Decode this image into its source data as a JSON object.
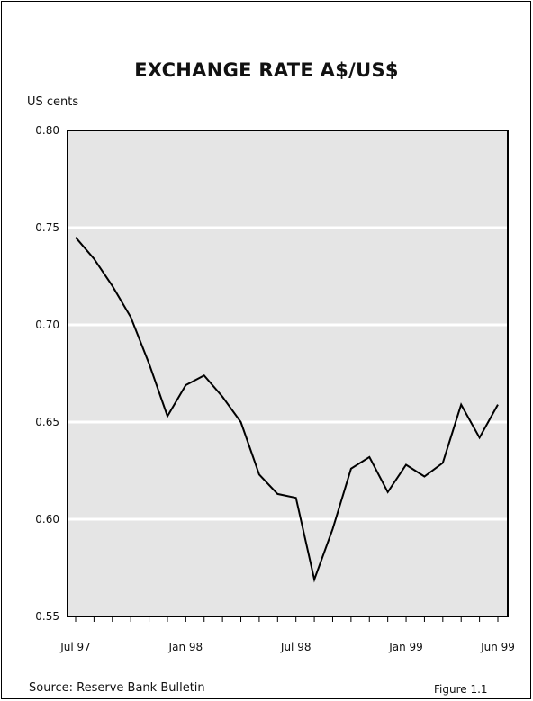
{
  "chart_data": {
    "type": "line",
    "title": "EXCHANGE RATE A$/US$",
    "ylabel": "US cents",
    "xlabel": "",
    "ylim": [
      0.55,
      0.8
    ],
    "yticks": [
      "0.80",
      "0.75",
      "0.70",
      "0.65",
      "0.60",
      "0.55"
    ],
    "xticks": [
      "Jul 97",
      "Jan 98",
      "Jul 98",
      "Jan 99",
      "Jun 99"
    ],
    "grid": true,
    "series": [
      {
        "x": [
          "Jul 97",
          "Aug 97",
          "Sep 97",
          "Oct 97",
          "Nov 97",
          "Dec 97",
          "Jan 98",
          "Feb 98",
          "Mar 98",
          "Apr 98",
          "May 98",
          "Jun 98",
          "Jul 98",
          "Aug 98",
          "Sep 98",
          "Oct 98",
          "Nov 98",
          "Dec 98",
          "Jan 99",
          "Feb 99",
          "Mar 99",
          "Apr 99",
          "May 99",
          "Jun 99"
        ],
        "values": [
          0.745,
          0.734,
          0.72,
          0.704,
          0.68,
          0.653,
          0.669,
          0.674,
          0.663,
          0.65,
          0.623,
          0.613,
          0.611,
          0.569,
          0.595,
          0.626,
          0.632,
          0.614,
          0.628,
          0.622,
          0.629,
          0.659,
          0.642,
          0.659
        ]
      }
    ]
  },
  "source": "Source: Reserve Bank Bulletin",
  "figure": "Figure 1.1"
}
